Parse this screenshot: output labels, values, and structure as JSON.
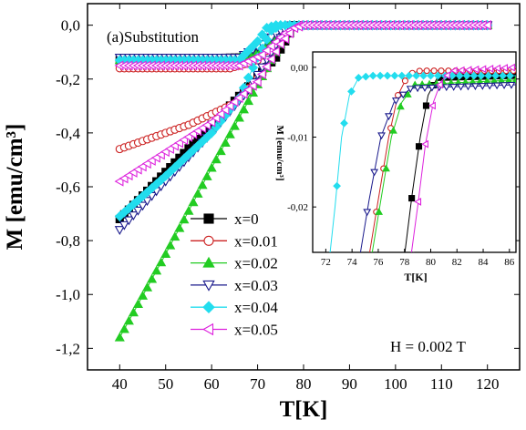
{
  "chart_data": [
    {
      "type": "scatter",
      "panel_label": "(a)Substitution",
      "xlabel": "T[K]",
      "ylabel": "M [emu/cm³]",
      "xlim": [
        33,
        127
      ],
      "ylim": [
        -1.28,
        0.08
      ],
      "x_ticks": [
        40,
        50,
        60,
        70,
        80,
        90,
        100,
        110,
        120
      ],
      "x_tick_labels": [
        "40",
        "50",
        "60",
        "70",
        "80",
        "90",
        "100",
        "110",
        "120"
      ],
      "y_ticks": [
        0.0,
        -0.2,
        -0.4,
        -0.6,
        -0.8,
        -1.0,
        -1.2
      ],
      "y_tick_labels": [
        "0,0",
        "-0,2",
        "-0,4",
        "-0,6",
        "-0,8",
        "-1,0",
        "-1,2"
      ],
      "annotation": "H = 0.002 T",
      "legend_position": "lower-middle",
      "series": [
        {
          "name": "x=0",
          "marker": "square-filled",
          "color": "#000000",
          "fc_points": [
            [
              40,
              -0.72
            ],
            [
              60,
              -0.37
            ],
            [
              74,
              -0.12
            ],
            [
              78,
              0.0
            ],
            [
              120,
              0.0
            ]
          ],
          "zfc_points": [
            [
              40,
              -0.13
            ],
            [
              66,
              -0.12
            ],
            [
              70,
              -0.09
            ],
            [
              74,
              -0.04
            ],
            [
              78,
              0.0
            ],
            [
              120,
              0.0
            ]
          ]
        },
        {
          "name": "x=0.01",
          "marker": "circle-open",
          "color": "#cc2222",
          "fc_points": [
            [
              40,
              -0.46
            ],
            [
              55,
              -0.37
            ],
            [
              65,
              -0.29
            ],
            [
              72,
              -0.16
            ],
            [
              76,
              -0.03
            ],
            [
              78,
              0.0
            ],
            [
              120,
              0.0
            ]
          ],
          "zfc_points": [
            [
              40,
              -0.16
            ],
            [
              64,
              -0.16
            ],
            [
              70,
              -0.13
            ],
            [
              74,
              -0.06
            ],
            [
              77,
              0.0
            ],
            [
              120,
              0.0
            ]
          ]
        },
        {
          "name": "x=0.02",
          "marker": "triangle-up-filled",
          "color": "#22cc22",
          "fc_points": [
            [
              40,
              -1.16
            ],
            [
              50,
              -0.85
            ],
            [
              60,
              -0.53
            ],
            [
              70,
              -0.22
            ],
            [
              75,
              -0.07
            ],
            [
              77,
              0.0
            ],
            [
              120,
              0.0
            ]
          ],
          "zfc_points": [
            [
              40,
              -0.13
            ],
            [
              64,
              -0.13
            ],
            [
              70,
              -0.1
            ],
            [
              74,
              -0.04
            ],
            [
              77,
              0.0
            ],
            [
              120,
              0.0
            ]
          ]
        },
        {
          "name": "x=0.03",
          "marker": "triangle-down-open",
          "color": "#1a1a8c",
          "fc_points": [
            [
              40,
              -0.76
            ],
            [
              50,
              -0.58
            ],
            [
              60,
              -0.4
            ],
            [
              68,
              -0.24
            ],
            [
              73,
              -0.1
            ],
            [
              76,
              -0.02
            ],
            [
              78,
              0.0
            ],
            [
              120,
              0.0
            ]
          ],
          "zfc_points": [
            [
              40,
              -0.12
            ],
            [
              66,
              -0.12
            ],
            [
              71,
              -0.07
            ],
            [
              75,
              -0.02
            ],
            [
              77,
              0.0
            ],
            [
              120,
              0.0
            ]
          ]
        },
        {
          "name": "x=0.04",
          "marker": "diamond-filled",
          "color": "#22ddee",
          "fc_points": [
            [
              40,
              -0.71
            ],
            [
              50,
              -0.56
            ],
            [
              60,
              -0.4
            ],
            [
              66,
              -0.27
            ],
            [
              70,
              -0.12
            ],
            [
              73,
              -0.02
            ],
            [
              75,
              0.0
            ],
            [
              120,
              0.0
            ]
          ],
          "zfc_points": [
            [
              40,
              -0.13
            ],
            [
              66,
              -0.13
            ],
            [
              70,
              -0.06
            ],
            [
              72,
              -0.01
            ],
            [
              74,
              0.0
            ],
            [
              120,
              0.0
            ]
          ]
        },
        {
          "name": "x=0.05",
          "marker": "triangle-left-open",
          "color": "#dd22dd",
          "fc_points": [
            [
              40,
              -0.58
            ],
            [
              50,
              -0.47
            ],
            [
              60,
              -0.36
            ],
            [
              70,
              -0.21
            ],
            [
              75,
              -0.07
            ],
            [
              78,
              -0.01
            ],
            [
              80,
              0.0
            ],
            [
              120,
              0.0
            ]
          ],
          "zfc_points": [
            [
              40,
              -0.15
            ],
            [
              66,
              -0.15
            ],
            [
              71,
              -0.11
            ],
            [
              76,
              -0.03
            ],
            [
              79,
              0.0
            ],
            [
              120,
              0.0
            ]
          ]
        }
      ]
    },
    {
      "type": "scatter",
      "panel": "inset",
      "xlabel": "T[K]",
      "ylabel": "M [emu/cm³]",
      "xlim": [
        71,
        86.5
      ],
      "ylim": [
        -0.0265,
        0.0022
      ],
      "x_ticks": [
        72,
        74,
        76,
        78,
        80,
        82,
        84,
        86
      ],
      "x_tick_labels": [
        "72",
        "74",
        "76",
        "78",
        "80",
        "82",
        "84",
        "86"
      ],
      "y_ticks": [
        0.0,
        -0.01,
        -0.02
      ],
      "y_tick_labels": [
        "0,00",
        "-0,01",
        "-0,02"
      ],
      "series": [
        {
          "name": "x=0",
          "marker": "square-filled",
          "color": "#000000",
          "points": [
            [
              78,
              -0.027
            ],
            [
              78.6,
              -0.018
            ],
            [
              79.2,
              -0.01
            ],
            [
              79.8,
              -0.004
            ],
            [
              80.5,
              -0.0015
            ],
            [
              86.5,
              -0.0012
            ]
          ]
        },
        {
          "name": "x=0.01",
          "marker": "circle-open",
          "color": "#cc2222",
          "points": [
            [
              75.3,
              -0.027
            ],
            [
              76,
              -0.019
            ],
            [
              76.8,
              -0.01
            ],
            [
              77.5,
              -0.004
            ],
            [
              78.3,
              -0.001
            ],
            [
              79.2,
              -0.0005
            ],
            [
              86.5,
              -0.0005
            ]
          ]
        },
        {
          "name": "x=0.02",
          "marker": "triangle-up-filled",
          "color": "#22cc22",
          "points": [
            [
              75.5,
              -0.027
            ],
            [
              76.2,
              -0.019
            ],
            [
              77,
              -0.01
            ],
            [
              77.8,
              -0.005
            ],
            [
              78.8,
              -0.0025
            ],
            [
              86.5,
              -0.0018
            ]
          ]
        },
        {
          "name": "x=0.03",
          "marker": "triangle-down-open",
          "color": "#1a1a8c",
          "points": [
            [
              74.6,
              -0.027
            ],
            [
              75.3,
              -0.019
            ],
            [
              76.2,
              -0.01
            ],
            [
              77.2,
              -0.005
            ],
            [
              78.5,
              -0.003
            ],
            [
              86.5,
              -0.0025
            ]
          ]
        },
        {
          "name": "x=0.04",
          "marker": "diamond-filled",
          "color": "#22ddee",
          "points": [
            [
              72.3,
              -0.027
            ],
            [
              72.7,
              -0.02
            ],
            [
              73.2,
              -0.01
            ],
            [
              73.8,
              -0.004
            ],
            [
              74.5,
              -0.0015
            ],
            [
              75.5,
              -0.0012
            ],
            [
              86.5,
              -0.0012
            ]
          ]
        },
        {
          "name": "x=0.05",
          "marker": "triangle-left-open",
          "color": "#dd22dd",
          "points": [
            [
              78.5,
              -0.027
            ],
            [
              79,
              -0.02
            ],
            [
              79.6,
              -0.011
            ],
            [
              80.2,
              -0.005
            ],
            [
              80.8,
              -0.002
            ],
            [
              81.6,
              -0.0005
            ],
            [
              86.5,
              0.0
            ]
          ]
        }
      ]
    }
  ]
}
